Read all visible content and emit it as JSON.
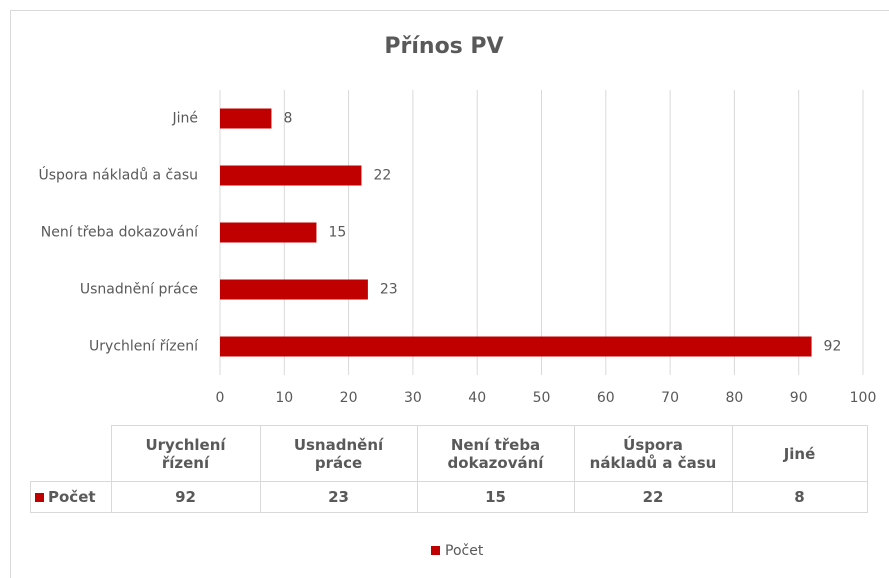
{
  "chart_data": {
    "type": "bar",
    "orientation": "horizontal",
    "title": "Přínos PV",
    "categories": [
      "Urychlení řízení",
      "Usnadnění práce",
      "Není třeba dokazování",
      "Úspora nákladů a času",
      "Jiné"
    ],
    "series": [
      {
        "name": "Počet",
        "color": "#c00000",
        "values": [
          92,
          23,
          15,
          22,
          8
        ]
      }
    ],
    "xlim": [
      0,
      100
    ],
    "xticks": [
      0,
      10,
      20,
      30,
      40,
      50,
      60,
      70,
      80,
      90,
      100
    ],
    "grid": true,
    "legend": "bottom"
  }
}
